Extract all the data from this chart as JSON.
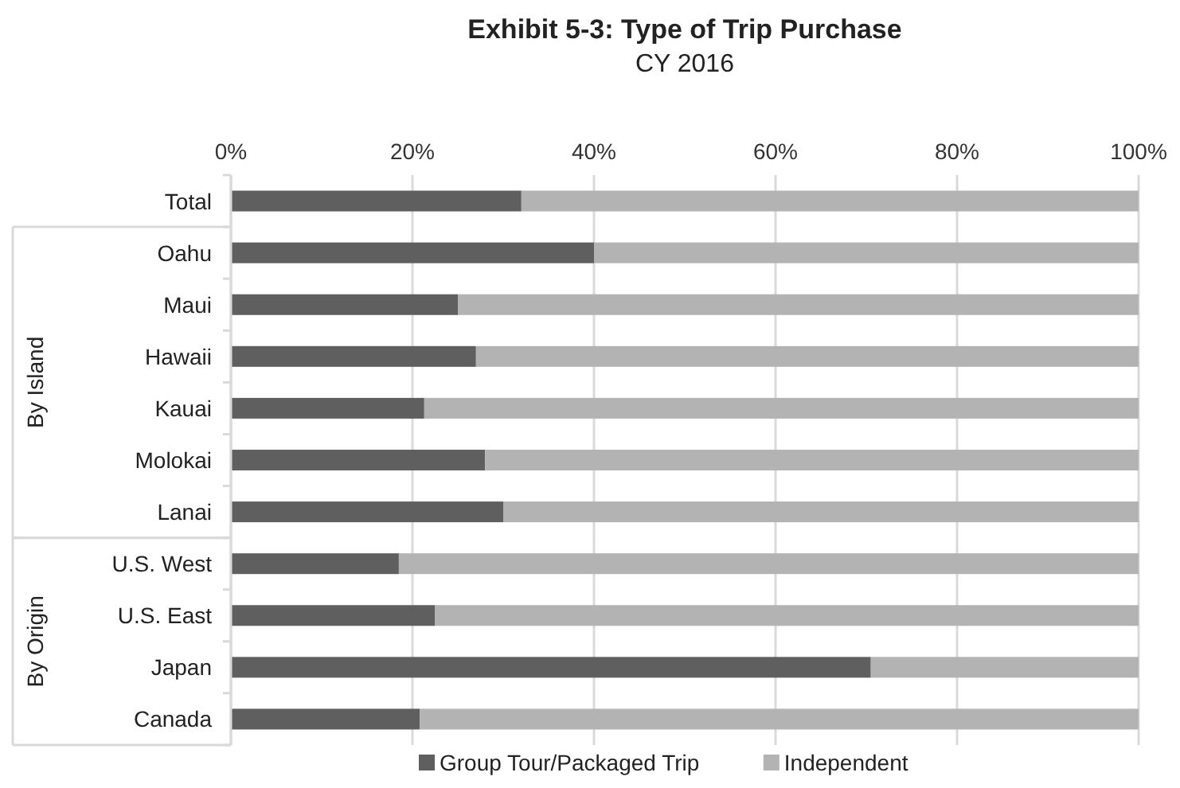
{
  "chart_data": {
    "type": "bar",
    "orientation": "horizontal",
    "stacked": true,
    "title": "Exhibit 5-3: Type of Trip Purchase",
    "subtitle": "CY 2016",
    "categories": [
      "Total",
      "Oahu",
      "Maui",
      "Hawaii",
      "Kauai",
      "Molokai",
      "Lanai",
      "U.S. West",
      "U.S. East",
      "Japan",
      "Canada"
    ],
    "series": [
      {
        "name": "Group Tour/Packaged Trip",
        "color": "#5f5f5f",
        "values": [
          32,
          40,
          25,
          27,
          21.3,
          28,
          30,
          18.5,
          22.5,
          70.5,
          20.8
        ]
      },
      {
        "name": "Independent",
        "color": "#b3b3b3",
        "values": [
          68,
          60,
          75,
          73,
          78.7,
          72,
          70,
          81.5,
          77.5,
          29.5,
          79.2
        ]
      }
    ],
    "xlim": [
      0,
      100
    ],
    "xticks": [
      {
        "value": 0,
        "label": "0%"
      },
      {
        "value": 20,
        "label": "20%"
      },
      {
        "value": 40,
        "label": "40%"
      },
      {
        "value": 60,
        "label": "60%"
      },
      {
        "value": 80,
        "label": "80%"
      },
      {
        "value": 100,
        "label": "100%"
      }
    ],
    "grid": "x",
    "legend": "bottom",
    "annotations": [
      "By Island",
      "By Origin"
    ]
  }
}
